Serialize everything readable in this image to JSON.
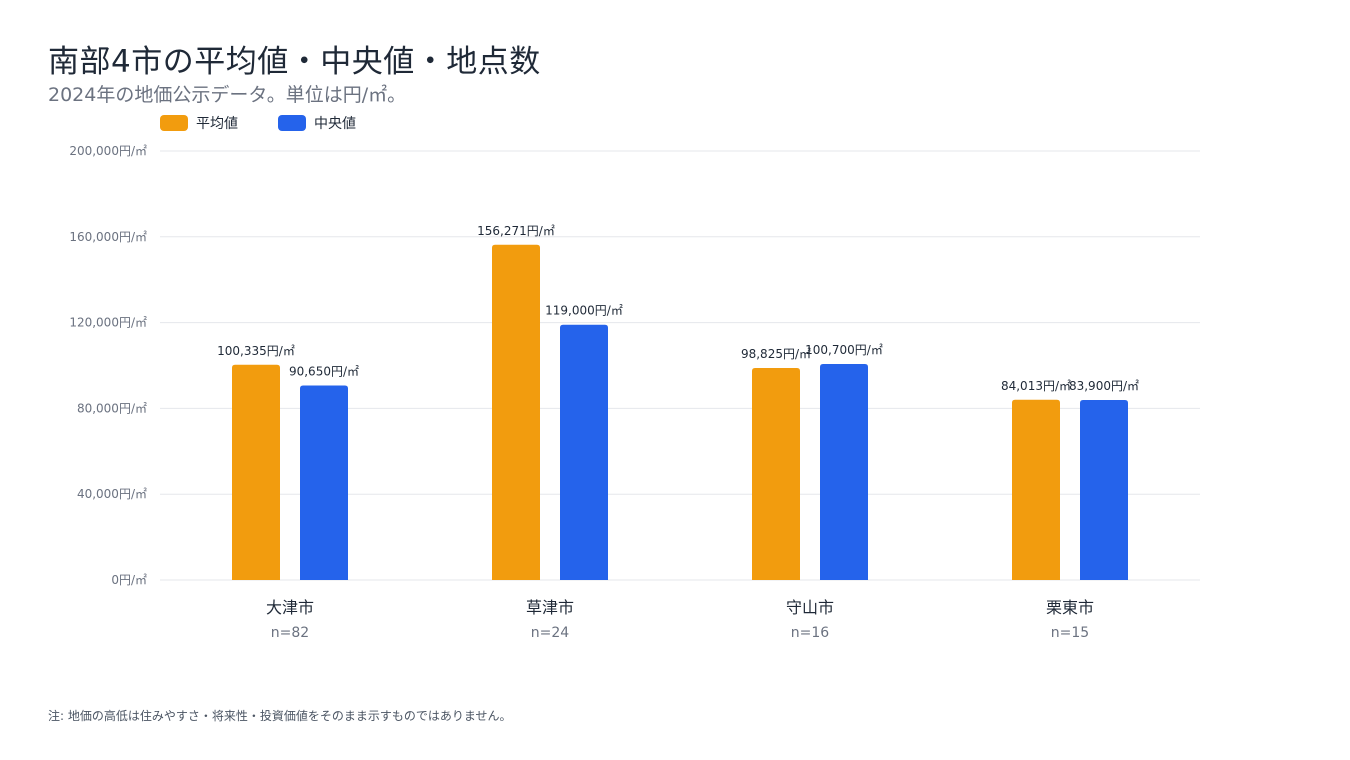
{
  "title": "南部4市の平均値・中央値・地点数",
  "subtitle": "2024年の地価公示データ。単位は円/㎡。",
  "note": "注: 地価の高低は住みやすさ・将来性・投資価値をそのまま示すものではありません。",
  "colors": {
    "average": "#F29C0E",
    "median": "#2563EB",
    "grid": "#e5e7eb",
    "axis_text": "#6b7280"
  },
  "chart_data": {
    "type": "bar",
    "categories": [
      "大津市",
      "草津市",
      "守山市",
      "栗東市"
    ],
    "counts": [
      "n=82",
      "n=24",
      "n=16",
      "n=15"
    ],
    "series": [
      {
        "name": "平均値",
        "values": [
          100335,
          156271,
          98825,
          84013
        ],
        "labels": [
          "100,335円/㎡",
          "156,271円/㎡",
          "98,825円/㎡",
          "84,013円/㎡"
        ]
      },
      {
        "name": "中央値",
        "values": [
          90650,
          119000,
          100700,
          83900
        ],
        "labels": [
          "90,650円/㎡",
          "119,000円/㎡",
          "100,700円/㎡",
          "83,900円/㎡"
        ]
      }
    ],
    "ylim": [
      0,
      200000
    ],
    "yticks": [
      0,
      40000,
      80000,
      120000,
      160000,
      200000
    ],
    "ytick_labels": [
      "0円/㎡",
      "40,000円/㎡",
      "80,000円/㎡",
      "120,000円/㎡",
      "160,000円/㎡",
      "200,000円/㎡"
    ],
    "grid": true,
    "legend": "top-left"
  }
}
